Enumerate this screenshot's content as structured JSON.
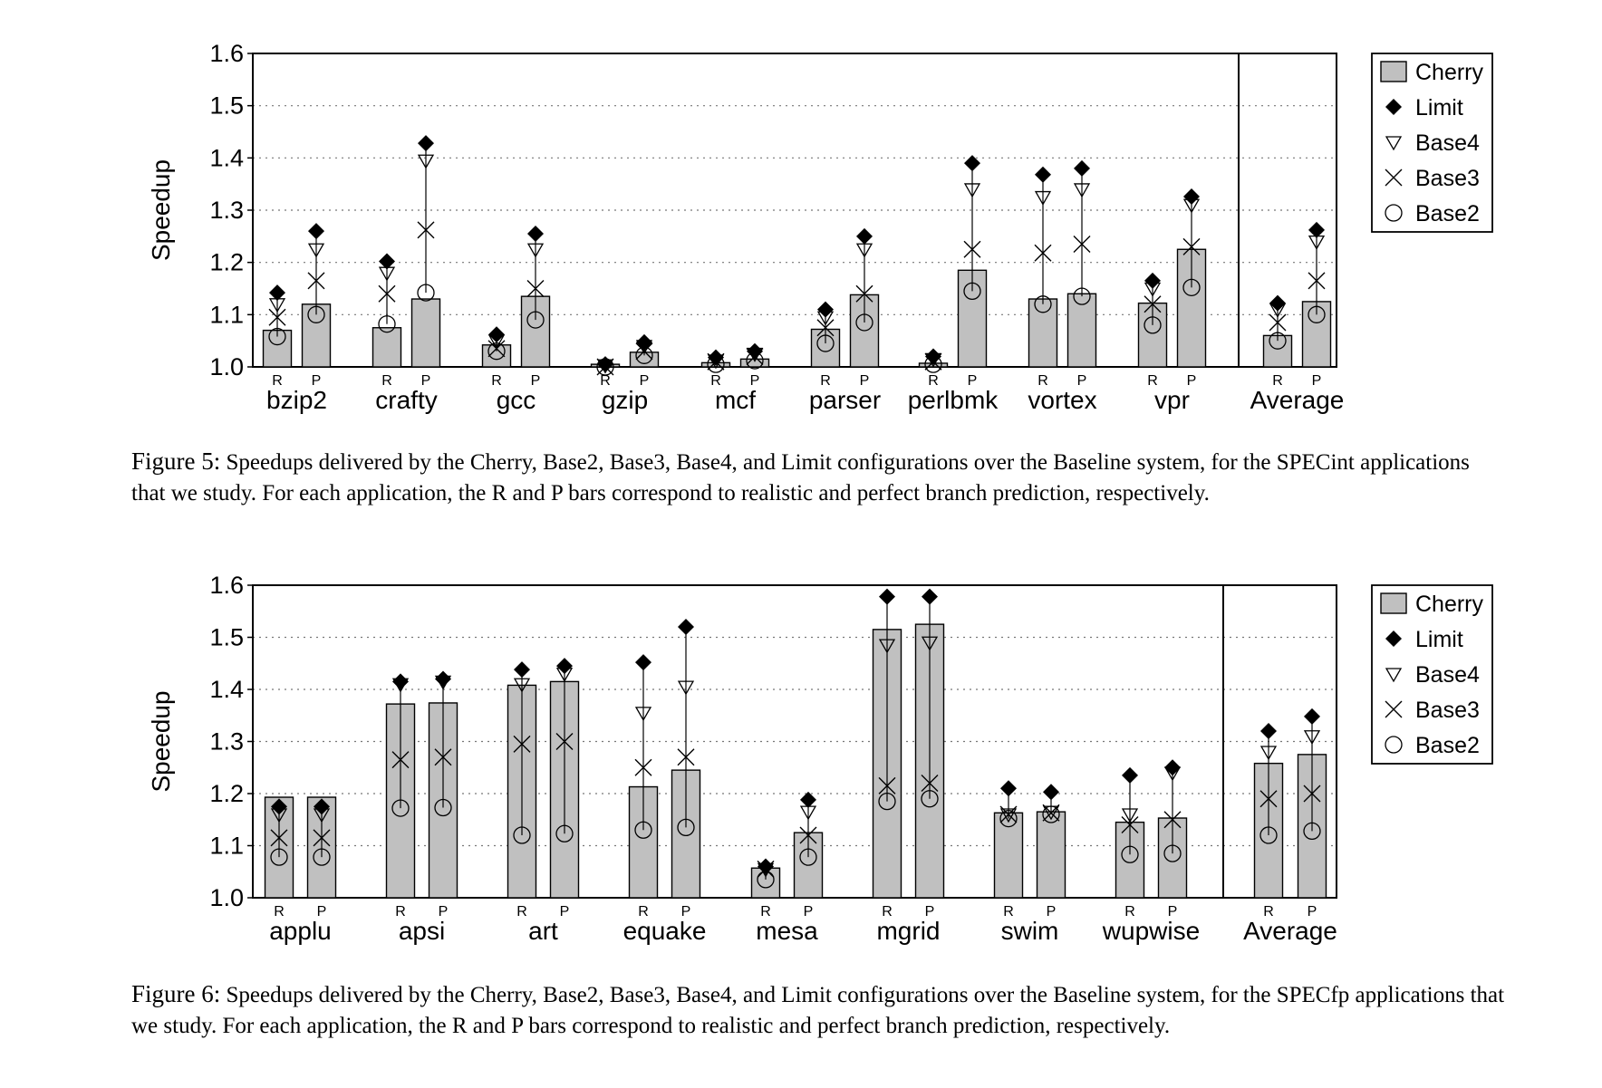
{
  "chart_data": [
    {
      "type": "bar",
      "ylabel": "Speedup",
      "ylim": [
        1.0,
        1.6
      ],
      "yticks": [
        "1.0",
        "1.1",
        "1.2",
        "1.3",
        "1.4",
        "1.5",
        "1.6"
      ],
      "grid": true,
      "legend": [
        "Cherry",
        "Limit",
        "Base4",
        "Base3",
        "Base2"
      ],
      "legend_position": "right",
      "bar_labels": [
        "R",
        "P"
      ],
      "categories": [
        "bzip2",
        "crafty",
        "gcc",
        "gzip",
        "mcf",
        "parser",
        "perlbmk",
        "vortex",
        "vpr",
        "Average"
      ],
      "series": {
        "Cherry": [
          1.07,
          1.12,
          1.075,
          1.13,
          1.042,
          1.135,
          1.005,
          1.028,
          1.008,
          1.015,
          1.072,
          1.138,
          1.007,
          1.185,
          1.13,
          1.14,
          1.122,
          1.225,
          1.06,
          1.125
        ],
        "Limit": [
          1.142,
          1.26,
          1.202,
          1.428,
          1.062,
          1.255,
          1.005,
          1.047,
          1.018,
          1.03,
          1.11,
          1.25,
          1.02,
          1.39,
          1.368,
          1.38,
          1.165,
          1.326,
          1.122,
          1.262
        ],
        "Base4": [
          1.12,
          1.225,
          1.18,
          1.395,
          1.05,
          1.225,
          1.003,
          1.04,
          1.012,
          1.025,
          1.095,
          1.225,
          1.015,
          1.34,
          1.325,
          1.34,
          1.15,
          1.31,
          1.11,
          1.24
        ],
        "Base3": [
          1.095,
          1.165,
          1.14,
          1.262,
          1.035,
          1.15,
          1.0,
          1.03,
          1.01,
          1.02,
          1.075,
          1.14,
          1.01,
          1.225,
          1.218,
          1.235,
          1.12,
          1.23,
          1.085,
          1.165
        ],
        "Base2": [
          1.058,
          1.1,
          1.082,
          1.142,
          1.03,
          1.09,
          1.0,
          1.022,
          1.005,
          1.012,
          1.045,
          1.085,
          1.005,
          1.145,
          1.12,
          1.135,
          1.08,
          1.152,
          1.05,
          1.1
        ]
      }
    },
    {
      "type": "bar",
      "ylabel": "Speedup",
      "ylim": [
        1.0,
        1.6
      ],
      "yticks": [
        "1.0",
        "1.1",
        "1.2",
        "1.3",
        "1.4",
        "1.5",
        "1.6"
      ],
      "grid": true,
      "legend": [
        "Cherry",
        "Limit",
        "Base4",
        "Base3",
        "Base2"
      ],
      "legend_position": "right",
      "bar_labels": [
        "R",
        "P"
      ],
      "categories": [
        "applu",
        "apsi",
        "art",
        "equake",
        "mesa",
        "mgrid",
        "swim",
        "wupwise",
        "Average"
      ],
      "series": {
        "Cherry": [
          1.193,
          1.193,
          1.372,
          1.374,
          1.408,
          1.415,
          1.213,
          1.245,
          1.057,
          1.125,
          1.515,
          1.525,
          1.163,
          1.165,
          1.145,
          1.153,
          1.258,
          1.275
        ],
        "Limit": [
          1.175,
          1.175,
          1.415,
          1.42,
          1.438,
          1.445,
          1.452,
          1.52,
          1.06,
          1.188,
          1.578,
          1.578,
          1.21,
          1.203,
          1.235,
          1.25,
          1.32,
          1.348
        ],
        "Base4": [
          1.16,
          1.16,
          1.41,
          1.415,
          1.41,
          1.43,
          1.355,
          1.405,
          1.055,
          1.165,
          1.485,
          1.49,
          1.16,
          1.165,
          1.16,
          1.24,
          1.28,
          1.31
        ],
        "Base3": [
          1.115,
          1.115,
          1.265,
          1.27,
          1.295,
          1.3,
          1.25,
          1.27,
          1.055,
          1.12,
          1.215,
          1.22,
          1.16,
          1.163,
          1.14,
          1.15,
          1.19,
          1.2
        ],
        "Base2": [
          1.078,
          1.078,
          1.172,
          1.173,
          1.12,
          1.123,
          1.13,
          1.135,
          1.035,
          1.078,
          1.185,
          1.19,
          1.152,
          1.16,
          1.083,
          1.085,
          1.12,
          1.128
        ]
      }
    }
  ],
  "captions": [
    {
      "label": "Figure 5:",
      "text": "Speedups delivered by the Cherry, Base2, Base3, Base4, and Limit configurations over the Baseline system, for the SPECint applications that we study. For each application, the R and P bars correspond to realistic and perfect branch prediction, respectively."
    },
    {
      "label": "Figure 6:",
      "text": "Speedups delivered by the Cherry, Base2, Base3, Base4, and Limit configurations over the Baseline system, for the SPECfp applications that we study. For each application, the R and P bars correspond to realistic and perfect branch prediction, respectively."
    }
  ]
}
